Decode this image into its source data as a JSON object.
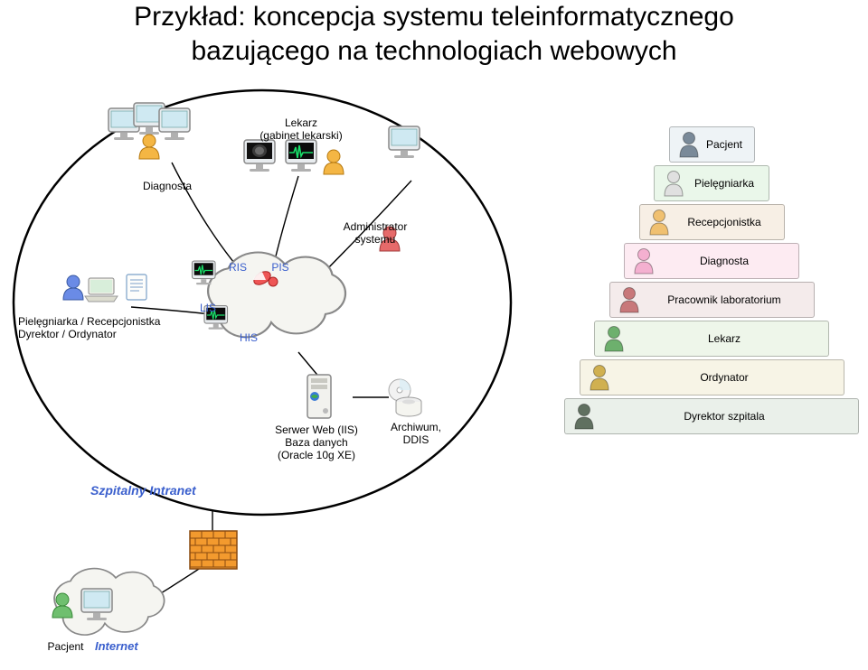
{
  "title_line1": "Przykład: koncepcja systemu teleinformatycznego",
  "title_line2": "bazującego na technologiach webowych",
  "intranet_label": "Szpitalny Intranet",
  "internet_label": "Internet",
  "labels": {
    "diagnosta": "Diagnosta",
    "lekarz_gabinet_1": "Lekarz",
    "lekarz_gabinet_2": "(gabinet lekarski)",
    "administrator_1": "Administrator",
    "administrator_2": "systemu",
    "pielegniarka_rec_1": "Pielęgniarka / Recepcjonistka",
    "pielegniarka_rec_2": "Dyrektor / Ordynator",
    "ris": "RIS",
    "pis": "PIS",
    "lis": "LIS",
    "his": "HIS",
    "server_1": "Serwer Web (IIS)",
    "server_2": "Baza danych",
    "server_3": "(Oracle 10g XE)",
    "archiwum_1": "Archiwum,",
    "archiwum_2": "DDIS",
    "pacjent_internet": "Pacjent"
  },
  "pyramid": {
    "tiers": [
      {
        "label": "Pacjent",
        "color": "#eef3f6",
        "icon": "#7a8a99"
      },
      {
        "label": "Pielęgniarka",
        "color": "#eaf7ea",
        "icon": "#e0e0e0"
      },
      {
        "label": "Recepcjonistka",
        "color": "#f7efe5",
        "icon": "#f0c070"
      },
      {
        "label": "Diagnosta",
        "color": "#fdebf2",
        "icon": "#f4b0d0"
      },
      {
        "label": "Pracownik laboratorium",
        "color": "#f4ebeb",
        "icon": "#c8787a"
      },
      {
        "label": "Lekarz",
        "color": "#eef6ea",
        "icon": "#6db06d"
      },
      {
        "label": "Ordynator",
        "color": "#f7f4e6",
        "icon": "#d0b050"
      },
      {
        "label": "Dyrektor szpitala",
        "color": "#eaf0ea",
        "icon": "#607060"
      }
    ],
    "start_width": 95,
    "width_step": 33
  },
  "colors": {
    "intranet_oval_stroke": "#000000",
    "cloud_stroke": "#888888",
    "cloud_fill": "#f5f5f1",
    "firewall_fill": "#f39a2e",
    "firewall_stroke": "#8a4b10",
    "wire": "#000000"
  }
}
